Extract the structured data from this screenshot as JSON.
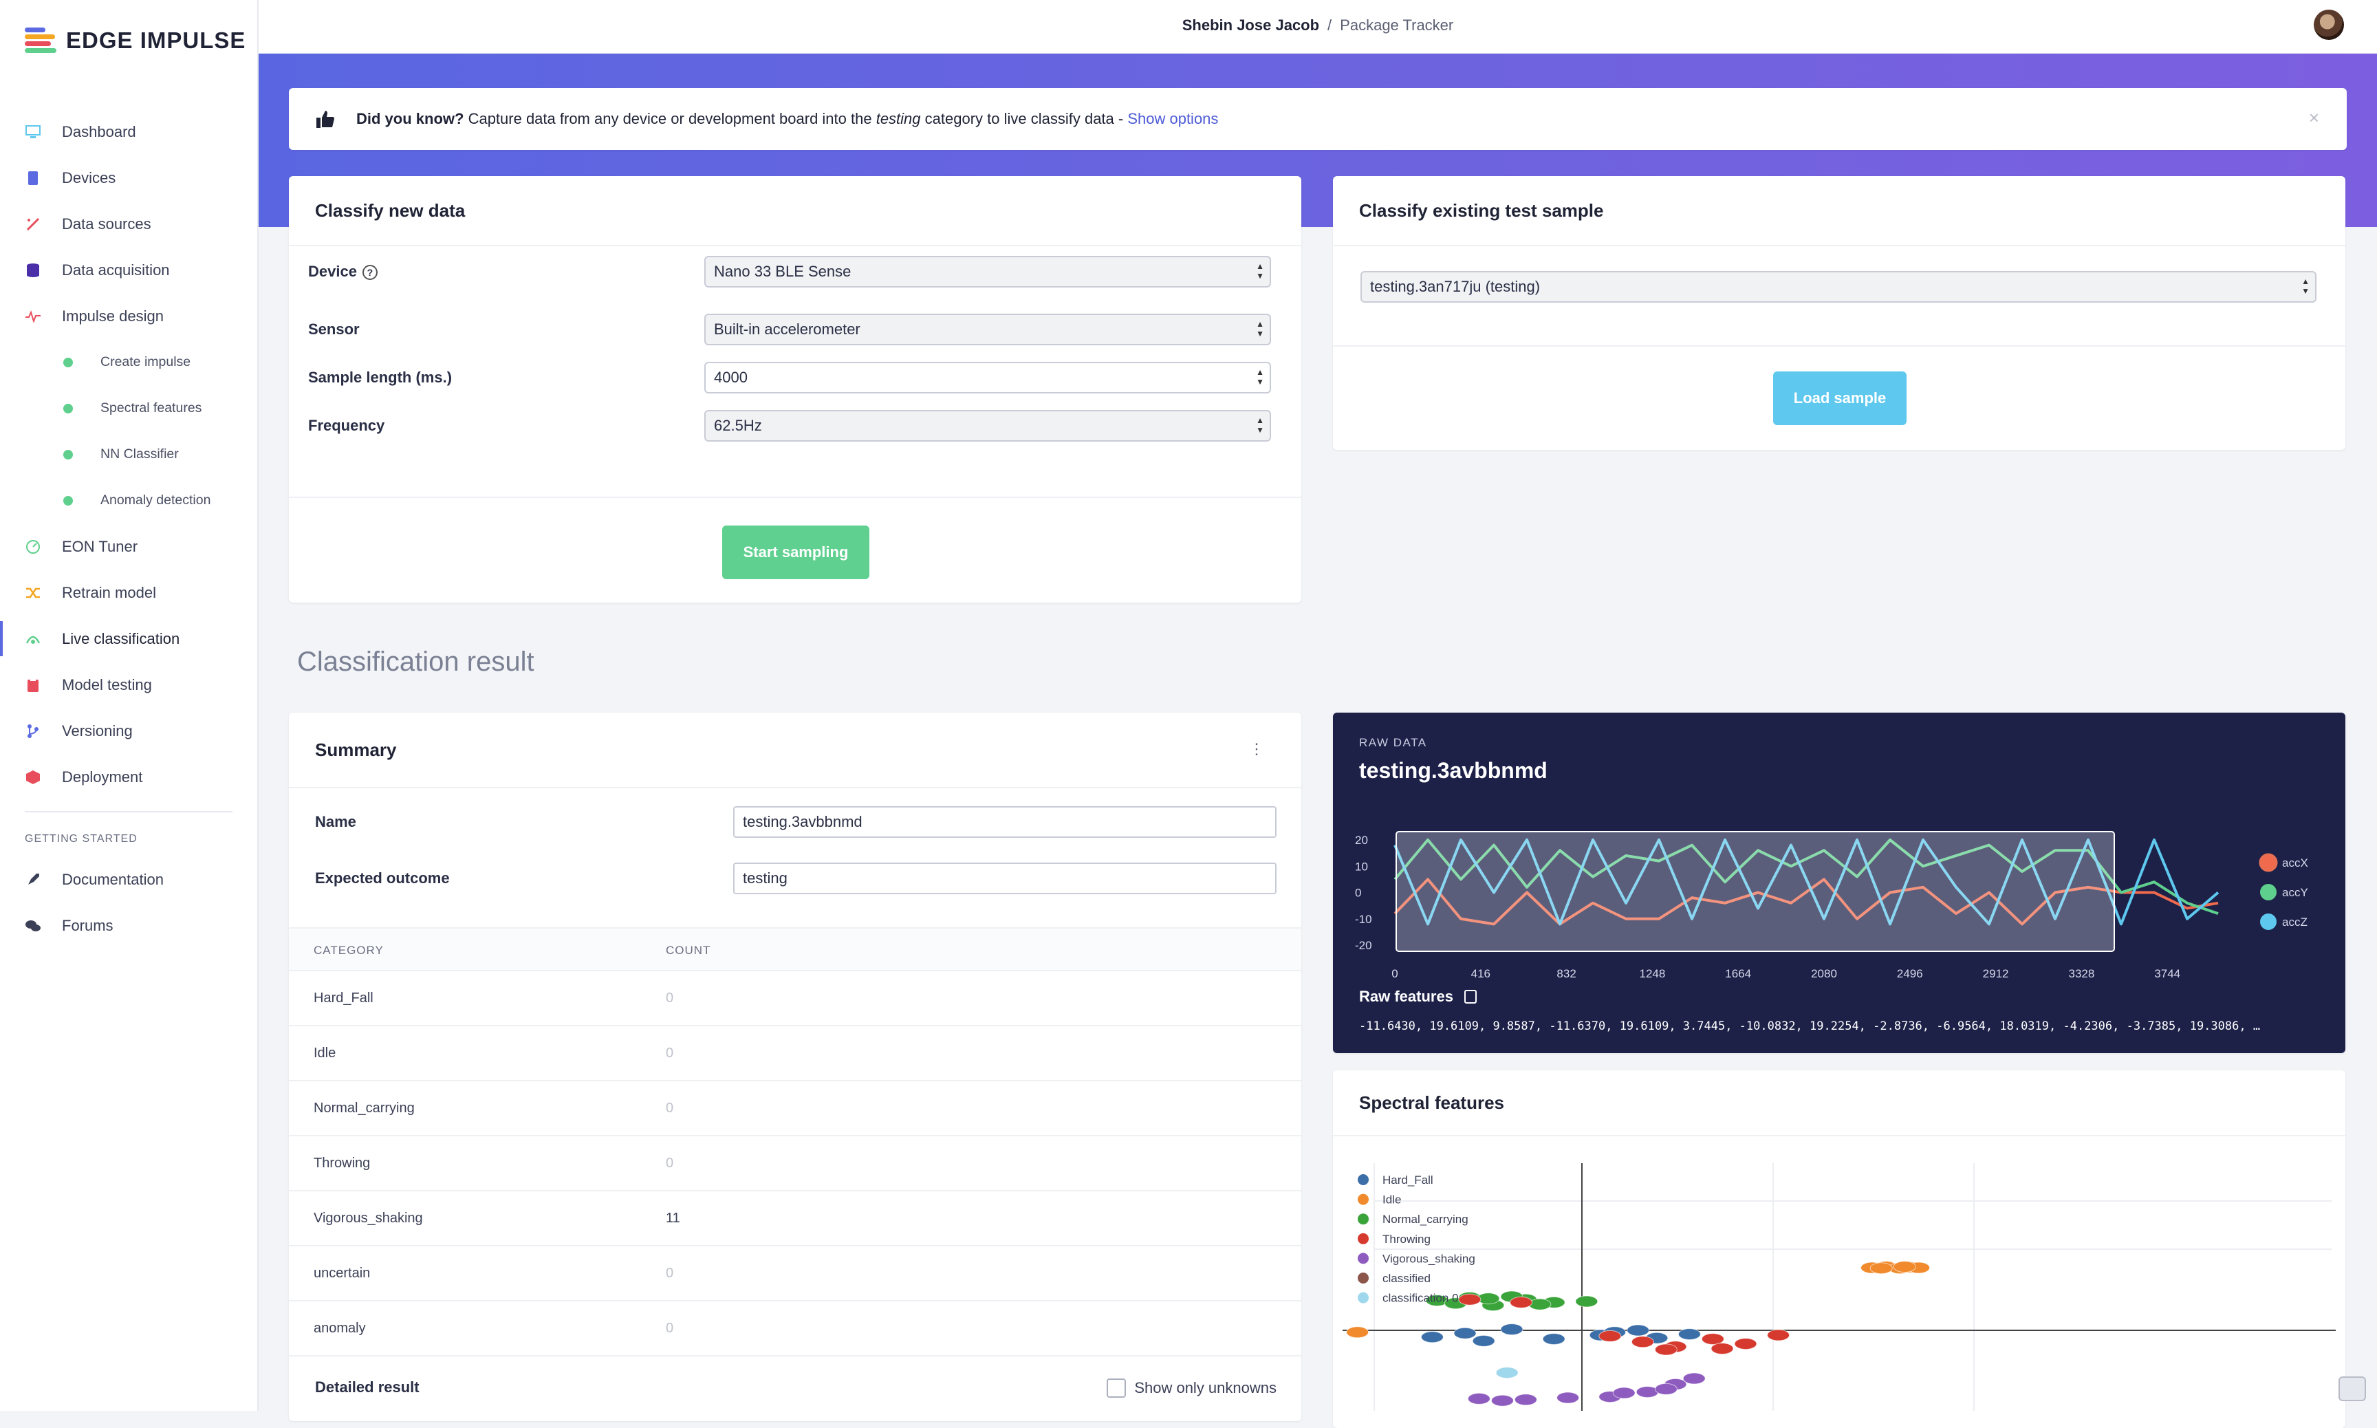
{
  "brand": {
    "name": "EDGE IMPULSE",
    "colors": [
      "#f5a623",
      "#e84d5b",
      "#5b6ae0",
      "#5fcf8d"
    ]
  },
  "sidebar": {
    "items": [
      {
        "label": "Dashboard",
        "icon": "monitor-icon"
      },
      {
        "label": "Devices",
        "icon": "chip-icon"
      },
      {
        "label": "Data sources",
        "icon": "wand-icon"
      },
      {
        "label": "Data acquisition",
        "icon": "database-icon"
      },
      {
        "label": "Impulse design",
        "icon": "pulse-icon"
      }
    ],
    "sub_items": [
      {
        "label": "Create impulse"
      },
      {
        "label": "Spectral features"
      },
      {
        "label": "NN Classifier"
      },
      {
        "label": "Anomaly detection"
      }
    ],
    "items2": [
      {
        "label": "EON Tuner",
        "icon": "tuner-icon"
      },
      {
        "label": "Retrain model",
        "icon": "shuffle-icon"
      },
      {
        "label": "Live classification",
        "icon": "live-icon",
        "active": true
      },
      {
        "label": "Model testing",
        "icon": "clipboard-icon"
      },
      {
        "label": "Versioning",
        "icon": "branch-icon"
      },
      {
        "label": "Deployment",
        "icon": "box-icon"
      }
    ],
    "getting_started_heading": "GETTING STARTED",
    "getting_started": [
      {
        "label": "Documentation",
        "icon": "rocket-icon"
      },
      {
        "label": "Forums",
        "icon": "chat-icon"
      }
    ]
  },
  "topbar": {
    "user": "Shebin Jose Jacob",
    "separator": "/",
    "project": "Package Tracker"
  },
  "info": {
    "bold": "Did you know?",
    "text_before": " Capture data from any device or development board into the ",
    "italic": "testing",
    "text_after": " category to live classify data - ",
    "link": "Show options",
    "close": "×"
  },
  "classify_new": {
    "title": "Classify new data",
    "device_label": "Device",
    "device_value": "Nano 33 BLE Sense",
    "sensor_label": "Sensor",
    "sensor_value": "Built-in accelerometer",
    "length_label": "Sample length (ms.)",
    "length_value": "4000",
    "frequency_label": "Frequency",
    "frequency_value": "62.5Hz",
    "start_button": "Start sampling"
  },
  "classify_existing": {
    "title": "Classify existing test sample",
    "sample_value": "testing.3an717ju (testing)",
    "load_button": "Load sample"
  },
  "result_title": "Classification result",
  "summary": {
    "title": "Summary",
    "name_label": "Name",
    "name_value": "testing.3avbbnmd",
    "expected_label": "Expected outcome",
    "expected_value": "testing",
    "col_category": "CATEGORY",
    "col_count": "COUNT",
    "rows": [
      {
        "category": "Hard_Fall",
        "count": "0"
      },
      {
        "category": "Idle",
        "count": "0"
      },
      {
        "category": "Normal_carrying",
        "count": "0"
      },
      {
        "category": "Throwing",
        "count": "0"
      },
      {
        "category": "Vigorous_shaking",
        "count": "11"
      },
      {
        "category": "uncertain",
        "count": "0"
      },
      {
        "category": "anomaly",
        "count": "0"
      }
    ],
    "detailed_label": "Detailed result",
    "unknowns_label": "Show only unknowns"
  },
  "raw": {
    "tag": "RAW DATA",
    "name": "testing.3avbbnmd",
    "features_title": "Raw features",
    "features_values": "-11.6430, 19.6109, 9.8587, -11.6370, 19.6109, 3.7445, -10.0832, 19.2254, -2.8736, -6.9564, 18.0319, -4.2306, -3.7385, 19.3086, …"
  },
  "chart_data": [
    {
      "type": "line",
      "title": "",
      "xlabel": "",
      "ylabel": "",
      "x_ticks": [
        "0",
        "416",
        "832",
        "1248",
        "1664",
        "2080",
        "2496",
        "2912",
        "3328",
        "3744"
      ],
      "y_ticks": [
        "20",
        "10",
        "0",
        "-10",
        "-20"
      ],
      "xlim": [
        0,
        4000
      ],
      "ylim": [
        -20,
        20
      ],
      "grid": false,
      "legend_position": "right",
      "series": [
        {
          "name": "accX",
          "color": "#f06a4d",
          "x": [
            0,
            160,
            320,
            480,
            640,
            800,
            960,
            1120,
            1280,
            1440,
            1600,
            1760,
            1920,
            2080,
            2240,
            2400,
            2560,
            2720,
            2880,
            3040,
            3200,
            3360,
            3520,
            3680,
            3840,
            3990
          ],
          "values": [
            -8,
            5,
            -10,
            -12,
            0,
            -12,
            -4,
            -10,
            -10,
            -2,
            -4,
            0,
            -4,
            5,
            -10,
            0,
            2,
            -8,
            0,
            -12,
            0,
            2,
            0,
            0,
            -6,
            -4
          ]
        },
        {
          "name": "accY",
          "color": "#5fcf8d",
          "x": [
            0,
            160,
            320,
            480,
            640,
            800,
            960,
            1120,
            1280,
            1440,
            1600,
            1760,
            1920,
            2080,
            2240,
            2400,
            2560,
            2720,
            2880,
            3040,
            3200,
            3360,
            3520,
            3680,
            3840,
            3990
          ],
          "values": [
            5,
            20,
            5,
            18,
            2,
            16,
            6,
            14,
            12,
            18,
            4,
            16,
            10,
            16,
            6,
            20,
            10,
            14,
            18,
            8,
            16,
            16,
            0,
            4,
            -4,
            -8
          ]
        },
        {
          "name": "accZ",
          "color": "#5ec8ee",
          "x": [
            0,
            160,
            320,
            480,
            640,
            800,
            960,
            1120,
            1280,
            1440,
            1600,
            1760,
            1920,
            2080,
            2240,
            2400,
            2560,
            2720,
            2880,
            3040,
            3200,
            3360,
            3520,
            3680,
            3840,
            3990
          ],
          "values": [
            18,
            -12,
            20,
            0,
            20,
            -12,
            20,
            -4,
            20,
            -10,
            20,
            -6,
            18,
            -10,
            20,
            -12,
            20,
            2,
            -12,
            20,
            -10,
            20,
            -12,
            20,
            -10,
            0
          ]
        }
      ]
    },
    {
      "type": "scatter",
      "title": "Spectral features",
      "grid": true,
      "legend_position": "top-left",
      "series": [
        {
          "name": "Hard_Fall",
          "color": "#3c6fa8",
          "x": [
            -3.2,
            -2.5,
            -1.5,
            -0.6,
            0.4,
            1.6,
            2.3,
            -2.1,
            0.7,
            1.2
          ],
          "y": [
            -0.7,
            -0.3,
            0.1,
            -0.9,
            -0.5,
            -0.8,
            -0.4,
            -1.1,
            -0.2,
            0.0
          ]
        },
        {
          "name": "Idle",
          "color": "#f08a2c",
          "x": [
            6.2,
            6.5,
            6.8,
            7.0,
            7.2,
            -4.8,
            6.4,
            6.9
          ],
          "y": [
            6.5,
            6.6,
            6.45,
            6.55,
            6.5,
            -0.2,
            6.45,
            6.6
          ]
        },
        {
          "name": "Normal_carrying",
          "color": "#3aa43a",
          "x": [
            -3.1,
            -2.4,
            -1.9,
            -1.2,
            -0.6,
            0.1,
            -2.7,
            -1.5,
            -0.9,
            -2.0
          ],
          "y": [
            3.1,
            3.4,
            2.6,
            3.2,
            2.9,
            3.0,
            2.8,
            3.5,
            2.7,
            3.3
          ]
        },
        {
          "name": "Throwing",
          "color": "#d63a2f",
          "x": [
            0.6,
            1.3,
            2.0,
            2.8,
            3.5,
            4.2,
            -2.4,
            -1.3,
            1.8,
            3.0
          ],
          "y": [
            -0.6,
            -1.2,
            -1.7,
            -0.9,
            -1.4,
            -0.5,
            3.2,
            2.9,
            -2.0,
            -1.9
          ]
        },
        {
          "name": "Vigorous_shaking",
          "color": "#8e5bbf",
          "x": [
            -2.2,
            -1.2,
            -0.3,
            0.6,
            1.4,
            2.0,
            -1.7,
            0.9,
            1.8,
            2.4
          ],
          "y": [
            -7.1,
            -7.2,
            -7.0,
            -6.9,
            -6.4,
            -5.6,
            -7.3,
            -6.5,
            -6.1,
            -5.0
          ]
        },
        {
          "name": "classified",
          "color": "#8c564b",
          "x": [],
          "y": []
        },
        {
          "name": "classification 0",
          "color": "#9fd8ec",
          "x": [
            -1.6
          ],
          "y": [
            -4.4
          ]
        }
      ]
    }
  ],
  "feedback": "feedback-icon"
}
